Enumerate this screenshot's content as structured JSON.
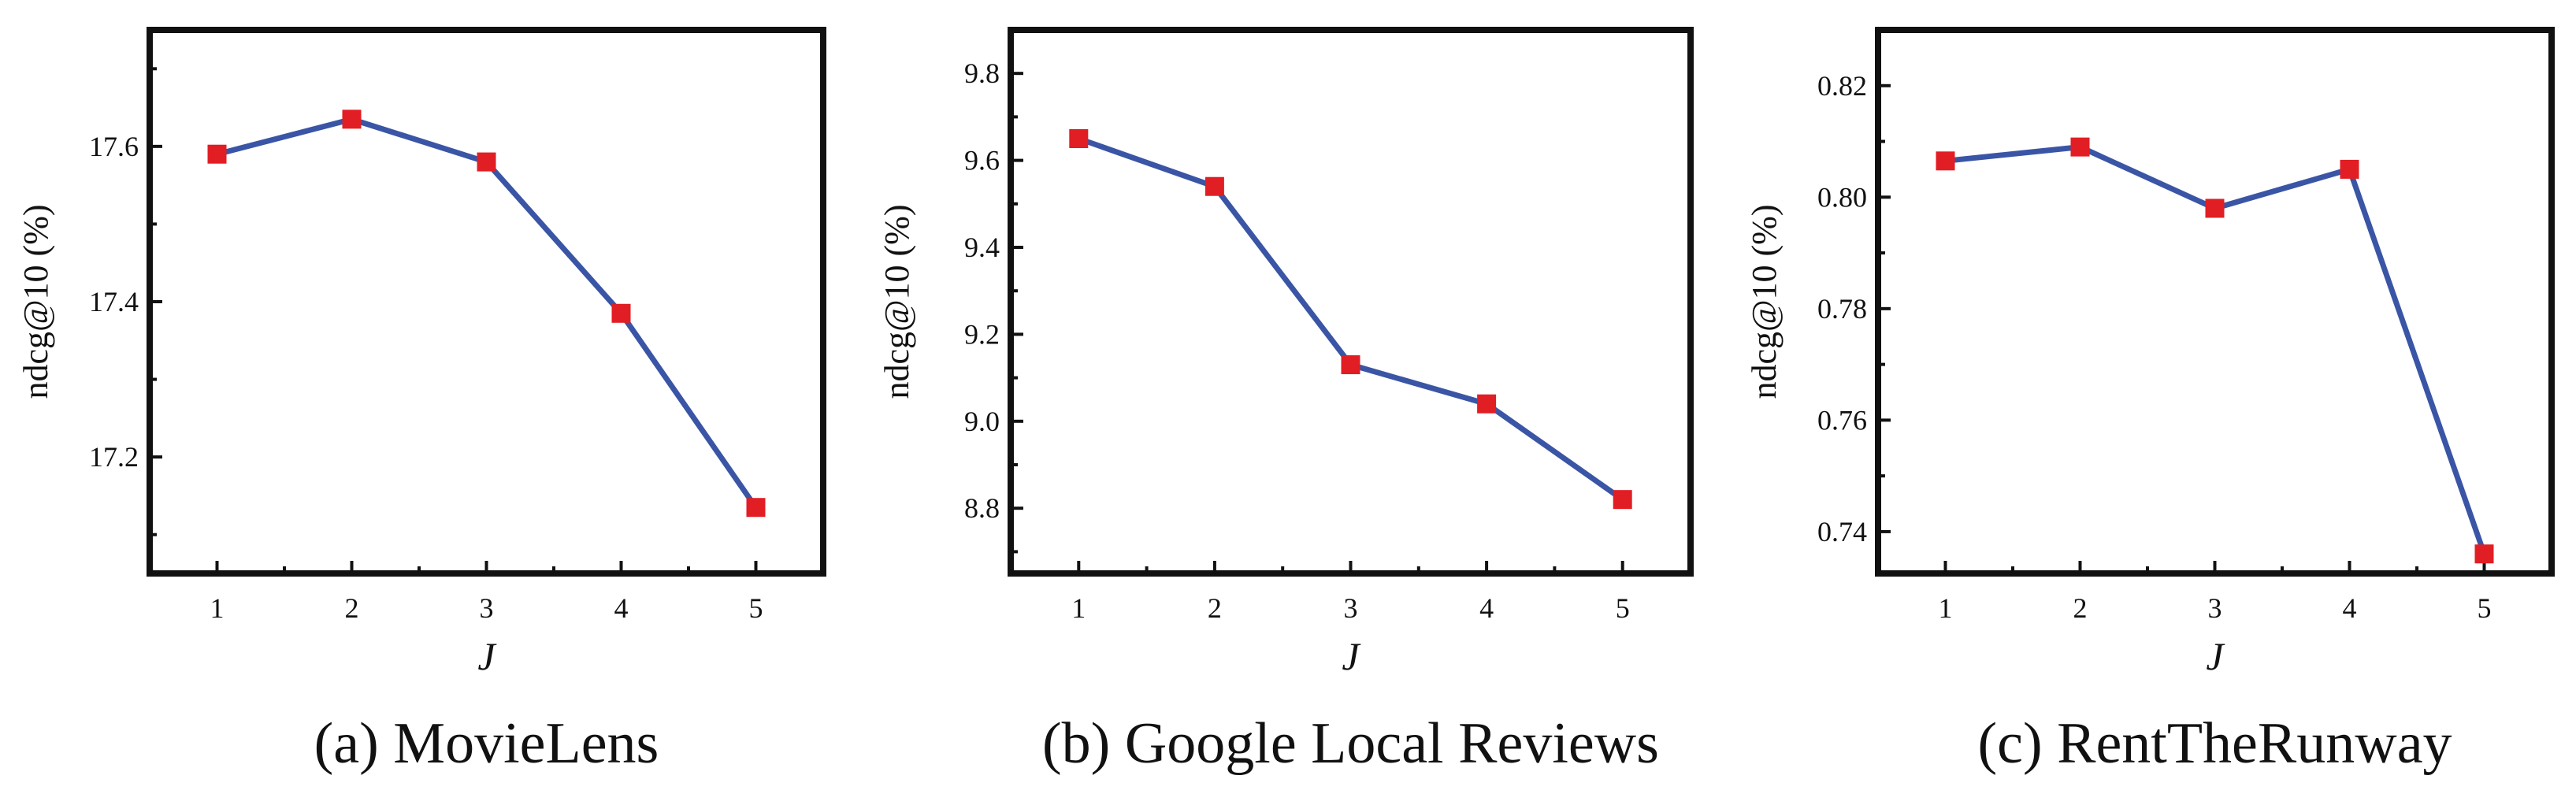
{
  "colors": {
    "line": "#3a55a5",
    "marker": "#e11e24",
    "frame": "#111111"
  },
  "chart_data": [
    {
      "type": "line",
      "caption": "(a) MovieLens",
      "xlabel": "J",
      "ylabel": "ndcg@10 (%)",
      "x": [
        1,
        2,
        3,
        4,
        5
      ],
      "xticks": [
        "1",
        "2",
        "3",
        "4",
        "5"
      ],
      "xlim": [
        0.5,
        5.5
      ],
      "series": [
        {
          "values": [
            17.59,
            17.635,
            17.58,
            17.385,
            17.135
          ]
        }
      ],
      "ylim": [
        17.05,
        17.75
      ],
      "yticks": [
        17.2,
        17.4,
        17.6
      ],
      "ytick_labels": [
        "17.2",
        "17.4",
        "17.6"
      ],
      "minor_yticks": [
        17.1,
        17.3,
        17.5,
        17.7
      ],
      "grid": false,
      "marker": "square"
    },
    {
      "type": "line",
      "caption": "(b) Google Local Reviews",
      "xlabel": "J",
      "ylabel": "ndcg@10 (%)",
      "x": [
        1,
        2,
        3,
        4,
        5
      ],
      "xticks": [
        "1",
        "2",
        "3",
        "4",
        "5"
      ],
      "xlim": [
        0.5,
        5.5
      ],
      "series": [
        {
          "values": [
            9.65,
            9.54,
            9.13,
            9.04,
            8.82
          ]
        }
      ],
      "ylim": [
        8.65,
        9.9
      ],
      "yticks": [
        8.8,
        9.0,
        9.2,
        9.4,
        9.6,
        9.8
      ],
      "ytick_labels": [
        "8.8",
        "9.0",
        "9.2",
        "9.4",
        "9.6",
        "9.8"
      ],
      "minor_yticks": [
        8.7,
        8.9,
        9.1,
        9.3,
        9.5,
        9.7
      ],
      "grid": false,
      "marker": "square"
    },
    {
      "type": "line",
      "caption": "(c) RentTheRunway",
      "xlabel": "J",
      "ylabel": "ndcg@10 (%)",
      "x": [
        1,
        2,
        3,
        4,
        5
      ],
      "xticks": [
        "1",
        "2",
        "3",
        "4",
        "5"
      ],
      "xlim": [
        0.5,
        5.5
      ],
      "series": [
        {
          "values": [
            0.8065,
            0.809,
            0.798,
            0.805,
            0.736
          ]
        }
      ],
      "ylim": [
        0.7325,
        0.83
      ],
      "yticks": [
        0.74,
        0.76,
        0.78,
        0.8,
        0.82
      ],
      "ytick_labels": [
        "0.74",
        "0.76",
        "0.78",
        "0.80",
        "0.82"
      ],
      "minor_yticks": [
        0.75,
        0.77,
        0.79,
        0.81
      ],
      "grid": false,
      "marker": "square"
    }
  ]
}
